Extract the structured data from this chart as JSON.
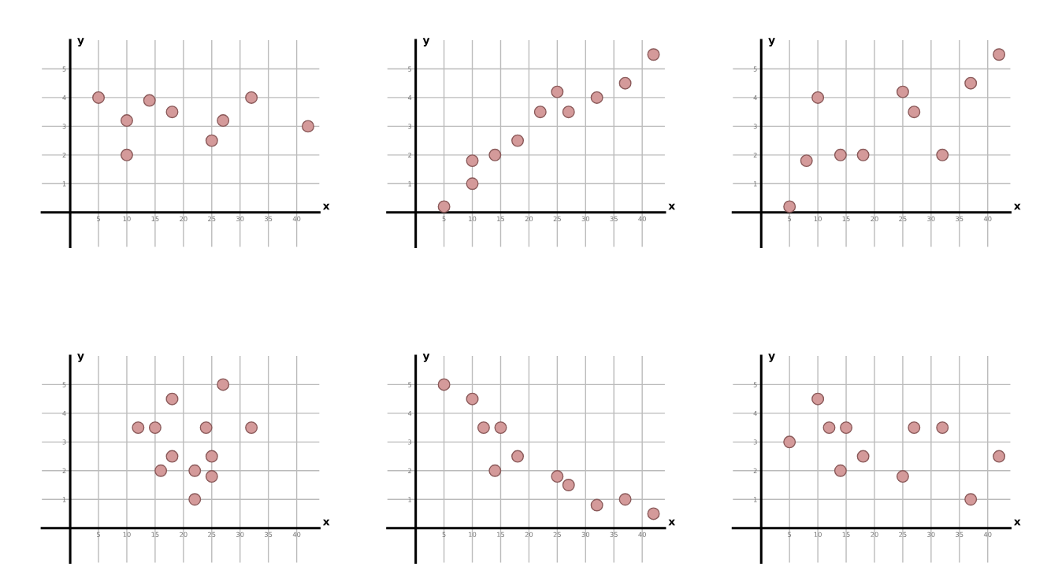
{
  "chart_data": [
    {
      "type": "scatter",
      "xlabel": "x",
      "ylabel": "y",
      "xlim": [
        -5,
        44
      ],
      "ylim": [
        -1.2,
        6
      ],
      "xticks": [
        5,
        10,
        15,
        20,
        25,
        30,
        35,
        40
      ],
      "yticks": [
        1,
        2,
        3,
        4,
        5
      ],
      "grid": true,
      "marker": "circle",
      "series": [
        {
          "color": "#d49a9a",
          "x": [
            5,
            10,
            10,
            14,
            18,
            25,
            27,
            32,
            42
          ],
          "values": [
            4,
            3.2,
            2,
            3.9,
            3.5,
            2.5,
            3.2,
            4,
            3
          ]
        }
      ]
    },
    {
      "type": "scatter",
      "xlabel": "x",
      "ylabel": "y",
      "xlim": [
        -5,
        44
      ],
      "ylim": [
        -1.2,
        6
      ],
      "xticks": [
        5,
        10,
        15,
        20,
        25,
        30,
        35,
        40
      ],
      "yticks": [
        1,
        2,
        3,
        4,
        5
      ],
      "grid": true,
      "marker": "circle",
      "series": [
        {
          "color": "#d49a9a",
          "x": [
            5,
            10,
            10,
            14,
            18,
            22,
            25,
            27,
            32,
            37,
            42
          ],
          "values": [
            0.2,
            1,
            1.8,
            2,
            2.5,
            3.5,
            4.2,
            3.5,
            4,
            4.5,
            5.5
          ]
        }
      ]
    },
    {
      "type": "scatter",
      "xlabel": "x",
      "ylabel": "y",
      "xlim": [
        -5,
        44
      ],
      "ylim": [
        -1.2,
        6
      ],
      "xticks": [
        5,
        10,
        15,
        20,
        25,
        30,
        35,
        40
      ],
      "yticks": [
        1,
        2,
        3,
        4,
        5
      ],
      "grid": true,
      "marker": "circle",
      "series": [
        {
          "color": "#d49a9a",
          "x": [
            5,
            8,
            10,
            14,
            18,
            25,
            27,
            32,
            37,
            42
          ],
          "values": [
            0.2,
            1.8,
            4,
            2,
            2,
            4.2,
            3.5,
            2,
            4.5,
            5.5
          ]
        }
      ]
    },
    {
      "type": "scatter",
      "xlabel": "x",
      "ylabel": "y",
      "xlim": [
        -5,
        44
      ],
      "ylim": [
        -1.2,
        6
      ],
      "xticks": [
        5,
        10,
        15,
        20,
        25,
        30,
        35,
        40
      ],
      "yticks": [
        1,
        2,
        3,
        4,
        5
      ],
      "grid": true,
      "marker": "circle",
      "series": [
        {
          "color": "#d49a9a",
          "x": [
            12,
            15,
            16,
            18,
            18,
            22,
            22,
            24,
            25,
            25,
            27,
            32
          ],
          "values": [
            3.5,
            3.5,
            2,
            4.5,
            2.5,
            2,
            1,
            3.5,
            2.5,
            1.8,
            5,
            3.5
          ]
        }
      ]
    },
    {
      "type": "scatter",
      "xlabel": "x",
      "ylabel": "y",
      "xlim": [
        -5,
        44
      ],
      "ylim": [
        -1.2,
        6
      ],
      "xticks": [
        5,
        10,
        15,
        20,
        25,
        30,
        35,
        40
      ],
      "yticks": [
        1,
        2,
        3,
        4,
        5
      ],
      "grid": true,
      "marker": "circle",
      "series": [
        {
          "color": "#d49a9a",
          "x": [
            5,
            10,
            12,
            15,
            14,
            18,
            25,
            27,
            32,
            37,
            42
          ],
          "values": [
            5,
            4.5,
            3.5,
            3.5,
            2,
            2.5,
            1.8,
            1.5,
            0.8,
            1,
            0.5
          ]
        }
      ]
    },
    {
      "type": "scatter",
      "xlabel": "x",
      "ylabel": "y",
      "xlim": [
        -5,
        44
      ],
      "ylim": [
        -1.2,
        6
      ],
      "xticks": [
        5,
        10,
        15,
        20,
        25,
        30,
        35,
        40
      ],
      "yticks": [
        1,
        2,
        3,
        4,
        5
      ],
      "grid": true,
      "marker": "circle",
      "series": [
        {
          "color": "#d49a9a",
          "x": [
            5,
            10,
            12,
            15,
            14,
            18,
            25,
            27,
            32,
            37,
            42
          ],
          "values": [
            3,
            4.5,
            3.5,
            3.5,
            2,
            2.5,
            1.8,
            3.5,
            3.5,
            1,
            2.5
          ]
        }
      ]
    }
  ]
}
